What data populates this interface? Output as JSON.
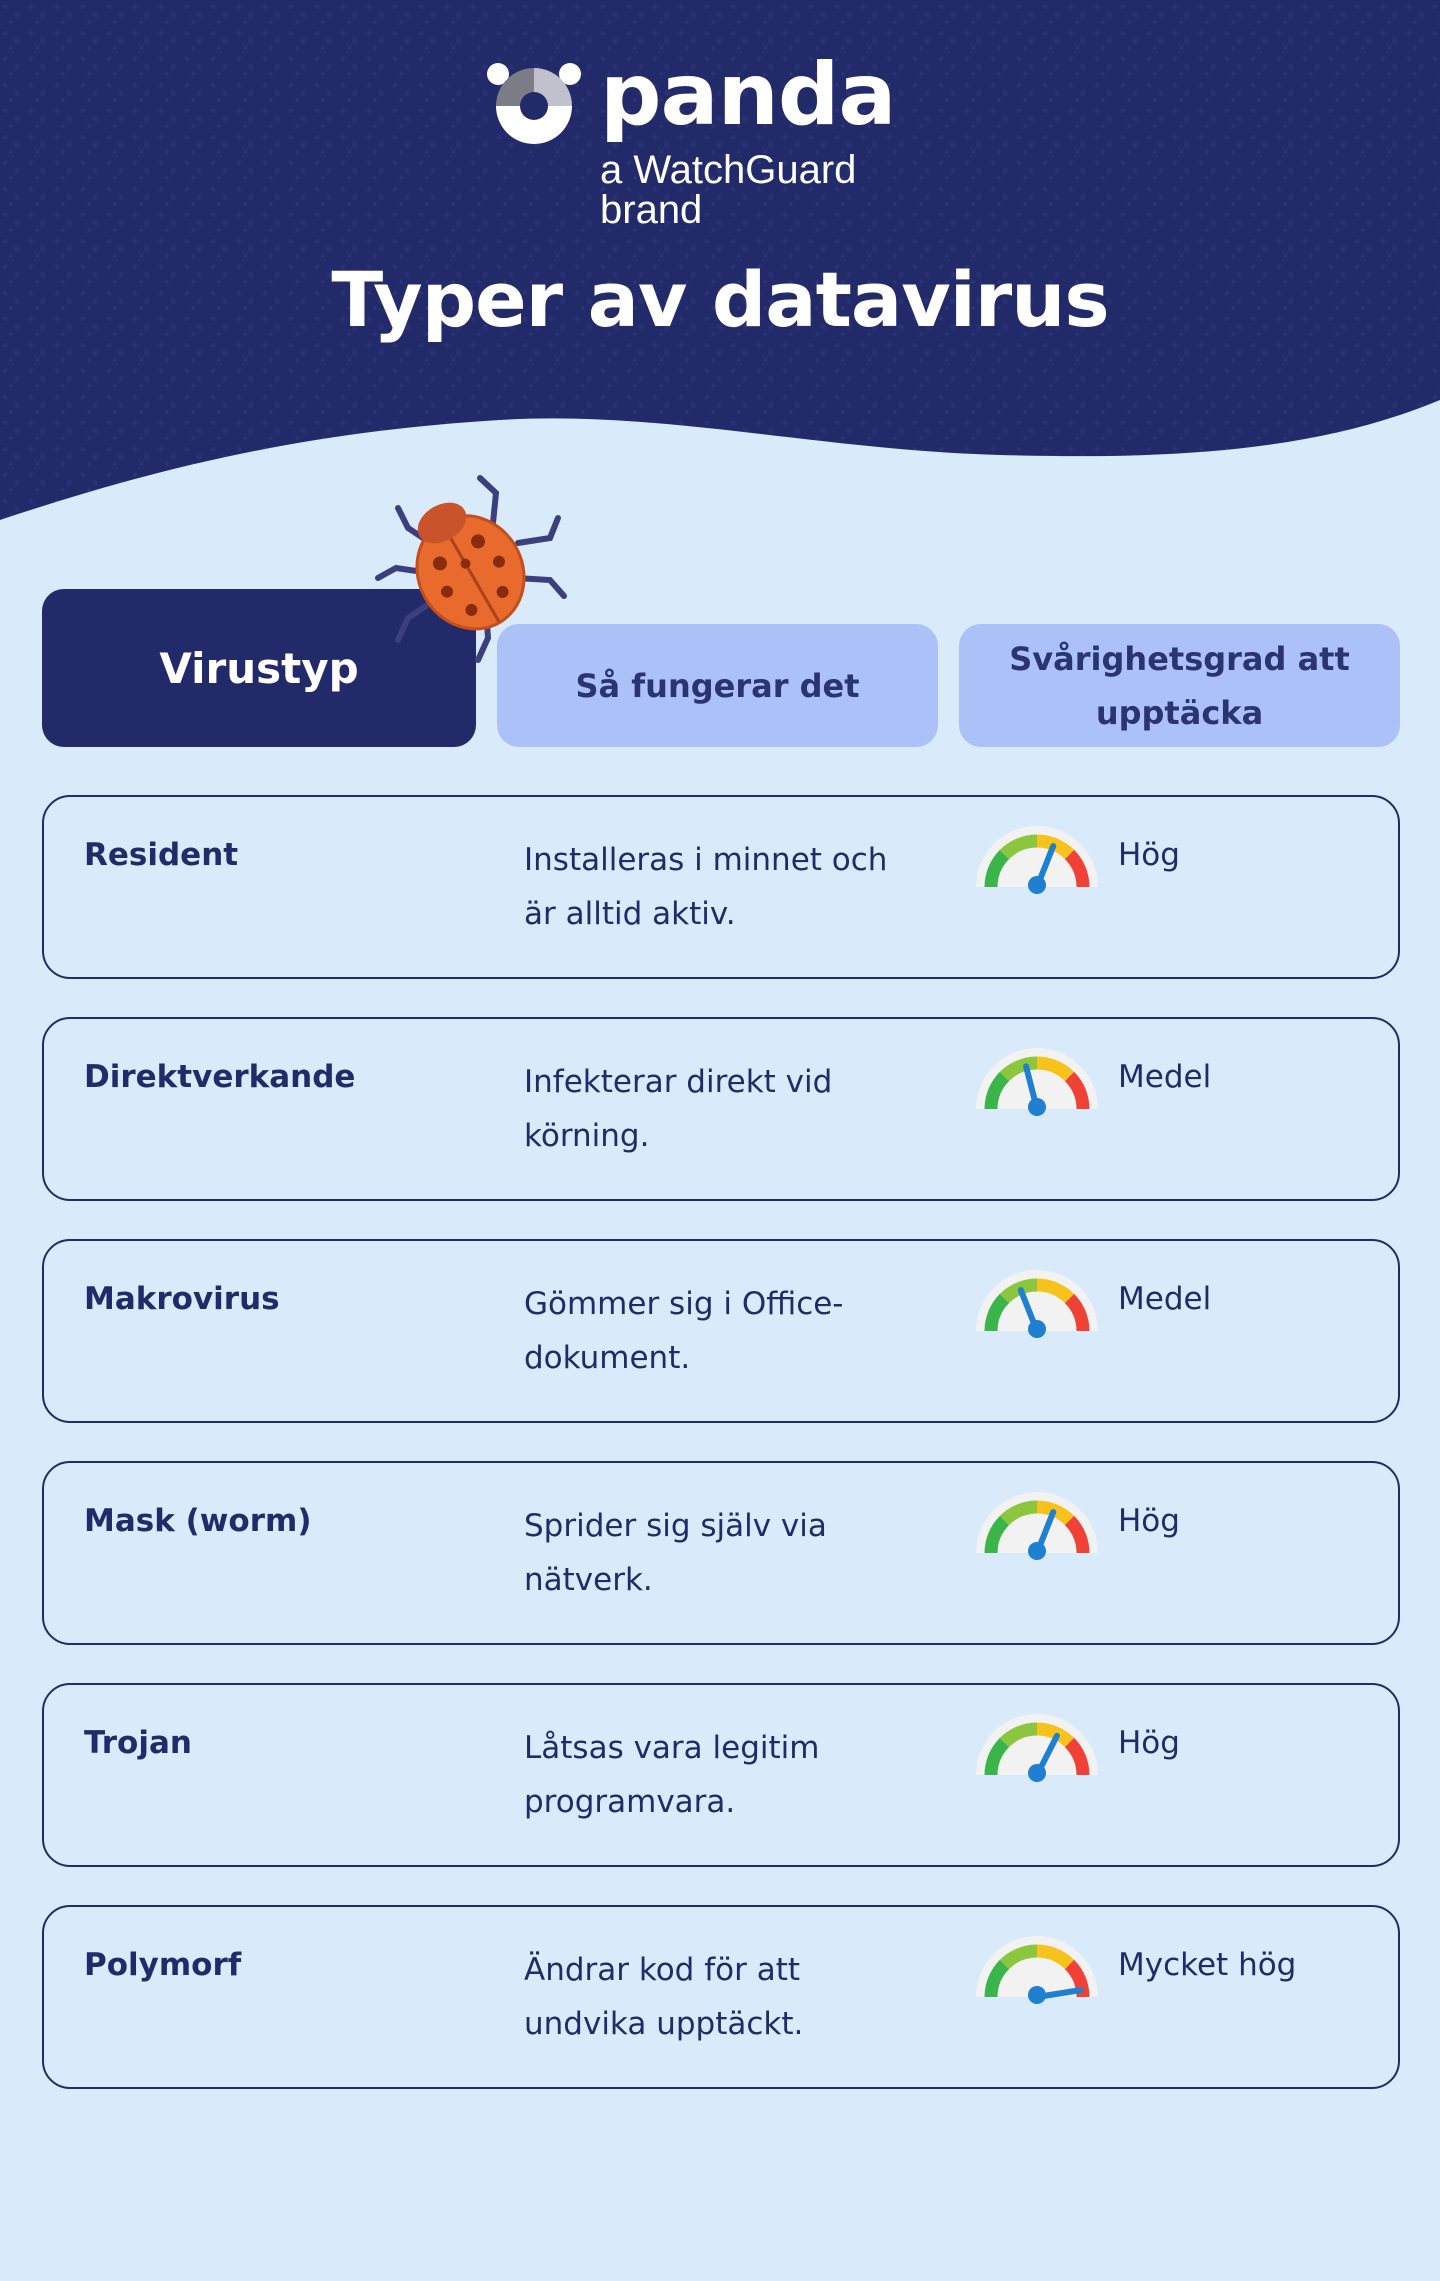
{
  "brand": {
    "name": "panda",
    "tagline": "a WatchGuard brand"
  },
  "title": "Typer av datavirus",
  "columns": {
    "type": "Virustyp",
    "how": "Så fungerar det",
    "difficulty": "Svårighetsgrad att upptäcka"
  },
  "rows": [
    {
      "name": "Resident",
      "description": "Installeras i minnet och är alltid aktiv.",
      "level": "Hög",
      "gauge_value": 0.62
    },
    {
      "name": "Direktverkande",
      "description": "Infekterar direkt vid körning.",
      "level": "Medel",
      "gauge_value": 0.42
    },
    {
      "name": "Makrovirus",
      "description": "Gömmer sig i Office-dokument.",
      "level": "Medel",
      "gauge_value": 0.38
    },
    {
      "name": "Mask (worm)",
      "description": "Sprider sig själv via nätverk.",
      "level": "Hög",
      "gauge_value": 0.62
    },
    {
      "name": "Trojan",
      "description": "Låtsas vara legitim programvara.",
      "level": "Hög",
      "gauge_value": 0.65
    },
    {
      "name": "Polymorf",
      "description": "Ändrar kod för att undvika upptäckt.",
      "level": "Mycket hög",
      "gauge_value": 0.95
    }
  ],
  "colors": {
    "header": "#232a6a",
    "background": "#d9ebfb",
    "tab_active": "#232a6a",
    "tab_inactive": "#abc1f8",
    "text": "#232a6a",
    "gauge_needle": "#1f7fd0"
  },
  "icons": {
    "logo": "panda-logo-icon",
    "bug": "ladybug-icon",
    "gauge": "gauge-meter-icon"
  }
}
